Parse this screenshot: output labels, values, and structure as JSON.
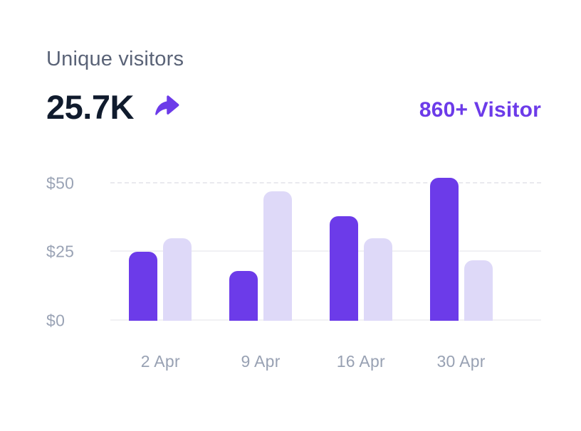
{
  "header": {
    "title": "Unique visitors",
    "value": "25.7K",
    "visitor_label": "860+ Visitor"
  },
  "colors": {
    "accent": "#6c3be9",
    "accent_light": "#ded9f8",
    "title_text": "#5a6377",
    "value_text": "#101b2d",
    "axis_text": "#9aa3b5",
    "gridline": "#f1f1f4"
  },
  "icons": {
    "trend": "share-arrow-icon"
  },
  "chart_data": {
    "type": "bar",
    "title": "Unique visitors",
    "categories": [
      "2 Apr",
      "9 Apr",
      "16 Apr",
      "30 Apr"
    ],
    "series": [
      {
        "name": "primary",
        "color": "#6c3be9",
        "values": [
          25,
          18,
          38,
          52
        ]
      },
      {
        "name": "secondary",
        "color": "#ded9f8",
        "values": [
          30,
          47,
          30,
          22
        ]
      }
    ],
    "xlabel": "",
    "ylabel": "",
    "y_ticks": [
      {
        "label": "$0",
        "value": 0,
        "style": "solid"
      },
      {
        "label": "$25",
        "value": 25,
        "style": "solid"
      },
      {
        "label": "$50",
        "value": 50,
        "style": "dashed"
      }
    ],
    "ylim": [
      0,
      55
    ],
    "grid": "horizontal",
    "legend_position": "none"
  }
}
